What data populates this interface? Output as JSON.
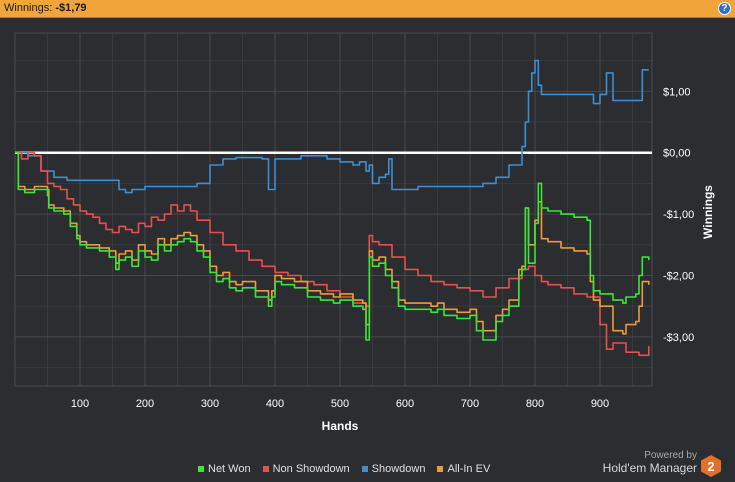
{
  "header": {
    "label": "Winnings:",
    "value": "-$1,79"
  },
  "help_glyph": "?",
  "branding": {
    "powered_by": "Powered by",
    "product": "Hold'em Manager",
    "logo_digit": "2"
  },
  "colors": {
    "background": "#2b2d30",
    "header_bar": "#f0a53a",
    "grid": "#4a4c50",
    "zero_line": "#ffffff",
    "net_won": "#39e639",
    "non_showdown": "#e8504d",
    "showdown": "#3d8fd6",
    "all_in_ev": "#f09a3a"
  },
  "chart_data": {
    "type": "line",
    "title": "",
    "xlabel": "Hands",
    "ylabel": "Winnings",
    "xlim": [
      0,
      980
    ],
    "ylim": [
      -3.8,
      1.95
    ],
    "xticks": [
      100,
      200,
      300,
      400,
      500,
      600,
      700,
      800,
      900
    ],
    "xtick_labels": [
      "100",
      "200",
      "300",
      "400",
      "500",
      "600",
      "700",
      "800",
      "900"
    ],
    "yticks": [
      1,
      0,
      -1,
      -2,
      -3
    ],
    "ytick_labels": [
      "$1,00",
      "$0,00",
      "-$1,00",
      "-$2,00",
      "-$3,00"
    ],
    "y_axis_side": "right",
    "grid": true,
    "legend_position": "bottom",
    "series": [
      {
        "name": "Net Won",
        "color": "#39e639",
        "x": [
          0,
          5,
          15,
          30,
          50,
          52,
          60,
          75,
          85,
          95,
          100,
          110,
          130,
          145,
          155,
          160,
          170,
          180,
          190,
          200,
          210,
          220,
          230,
          240,
          250,
          260,
          270,
          280,
          290,
          300,
          310,
          320,
          330,
          340,
          350,
          370,
          390,
          395,
          400,
          410,
          430,
          450,
          470,
          490,
          500,
          520,
          535,
          540,
          545,
          550,
          560,
          570,
          580,
          590,
          600,
          620,
          640,
          650,
          660,
          680,
          700,
          710,
          720,
          740,
          750,
          760,
          775,
          780,
          785,
          790,
          800,
          805,
          810,
          820,
          840,
          860,
          880,
          885,
          890,
          900,
          920,
          935,
          940,
          955,
          960,
          965,
          970,
          975
        ],
        "y": [
          0,
          -0.6,
          -0.65,
          -0.6,
          -0.7,
          -0.9,
          -0.95,
          -1.0,
          -1.2,
          -1.4,
          -1.5,
          -1.55,
          -1.6,
          -1.7,
          -1.9,
          -1.75,
          -1.7,
          -1.85,
          -1.6,
          -1.7,
          -1.75,
          -1.5,
          -1.6,
          -1.5,
          -1.45,
          -1.4,
          -1.45,
          -1.6,
          -1.7,
          -1.95,
          -2.1,
          -2.05,
          -2.2,
          -2.25,
          -2.2,
          -2.35,
          -2.5,
          -2.35,
          -2.1,
          -2.15,
          -2.2,
          -2.35,
          -2.4,
          -2.45,
          -2.4,
          -2.5,
          -2.55,
          -3.05,
          -1.7,
          -1.85,
          -1.8,
          -2.0,
          -2.2,
          -2.5,
          -2.55,
          -2.55,
          -2.6,
          -2.55,
          -2.65,
          -2.7,
          -2.65,
          -2.9,
          -3.05,
          -2.75,
          -2.65,
          -2.5,
          -2.0,
          -1.9,
          -0.9,
          -1.8,
          -1.15,
          -0.5,
          -0.9,
          -0.95,
          -1.0,
          -1.05,
          -1.1,
          -2.0,
          -2.25,
          -2.3,
          -2.4,
          -2.45,
          -2.35,
          -2.3,
          -2.0,
          -1.7,
          -1.7,
          -1.75
        ]
      },
      {
        "name": "Non Showdown",
        "color": "#e8504d",
        "x": [
          0,
          10,
          20,
          30,
          40,
          50,
          60,
          70,
          80,
          90,
          100,
          110,
          120,
          130,
          140,
          150,
          160,
          170,
          180,
          190,
          200,
          210,
          220,
          230,
          240,
          250,
          260,
          270,
          280,
          300,
          320,
          340,
          360,
          380,
          400,
          420,
          440,
          460,
          480,
          500,
          520,
          540,
          545,
          550,
          560,
          580,
          600,
          620,
          640,
          660,
          680,
          700,
          720,
          740,
          760,
          780,
          790,
          800,
          810,
          820,
          840,
          860,
          880,
          900,
          910,
          920,
          940,
          960,
          975
        ],
        "y": [
          0,
          -0.1,
          0,
          -0.05,
          -0.3,
          -0.5,
          -0.55,
          -0.6,
          -0.75,
          -0.85,
          -0.95,
          -1.0,
          -1.05,
          -1.15,
          -1.25,
          -1.3,
          -1.2,
          -1.25,
          -1.3,
          -1.15,
          -1.2,
          -1.05,
          -1.1,
          -1.0,
          -0.85,
          -0.95,
          -0.85,
          -0.95,
          -1.1,
          -1.3,
          -1.5,
          -1.6,
          -1.75,
          -1.85,
          -1.95,
          -2.0,
          -2.1,
          -2.15,
          -2.25,
          -2.35,
          -2.45,
          -2.5,
          -1.35,
          -1.45,
          -1.5,
          -1.7,
          -1.9,
          -2.0,
          -2.1,
          -2.15,
          -2.2,
          -2.25,
          -2.35,
          -2.2,
          -2.05,
          -1.9,
          -1.85,
          -2.0,
          -2.1,
          -2.15,
          -2.2,
          -2.3,
          -2.35,
          -2.8,
          -3.2,
          -3.1,
          -3.25,
          -3.3,
          -3.15
        ]
      },
      {
        "name": "Showdown",
        "color": "#3d8fd6",
        "x": [
          0,
          20,
          40,
          60,
          80,
          100,
          120,
          140,
          160,
          170,
          180,
          200,
          220,
          240,
          260,
          280,
          300,
          320,
          340,
          360,
          380,
          390,
          395,
          400,
          410,
          420,
          440,
          460,
          480,
          500,
          520,
          530,
          540,
          545,
          550,
          560,
          570,
          575,
          580,
          590,
          600,
          620,
          640,
          660,
          680,
          700,
          720,
          740,
          760,
          780,
          785,
          790,
          795,
          800,
          805,
          810,
          815,
          820,
          840,
          860,
          880,
          890,
          895,
          900,
          910,
          920,
          940,
          960,
          965,
          975
        ],
        "y": [
          0,
          -0.05,
          -0.3,
          -0.4,
          -0.45,
          -0.45,
          -0.45,
          -0.45,
          -0.6,
          -0.65,
          -0.6,
          -0.55,
          -0.55,
          -0.55,
          -0.55,
          -0.5,
          -0.2,
          -0.1,
          -0.08,
          -0.08,
          -0.1,
          -0.6,
          -0.6,
          -0.1,
          -0.1,
          -0.1,
          -0.05,
          -0.05,
          -0.1,
          -0.15,
          -0.2,
          -0.15,
          -0.3,
          -0.2,
          -0.5,
          -0.4,
          -0.35,
          -0.1,
          -0.6,
          -0.6,
          -0.6,
          -0.55,
          -0.55,
          -0.55,
          -0.55,
          -0.55,
          -0.5,
          -0.4,
          -0.2,
          0.1,
          0.5,
          1.0,
          1.3,
          1.5,
          1.1,
          0.95,
          0.95,
          0.95,
          0.95,
          0.95,
          0.95,
          0.8,
          0.8,
          0.95,
          1.3,
          0.85,
          0.85,
          0.85,
          1.35,
          1.35
        ]
      },
      {
        "name": "All-In EV",
        "color": "#f09a3a",
        "x": [
          0,
          5,
          15,
          30,
          50,
          52,
          60,
          75,
          85,
          95,
          100,
          110,
          130,
          145,
          155,
          160,
          170,
          180,
          190,
          200,
          210,
          220,
          230,
          240,
          250,
          260,
          270,
          280,
          290,
          300,
          310,
          320,
          330,
          340,
          350,
          370,
          390,
          395,
          400,
          410,
          430,
          450,
          470,
          490,
          500,
          520,
          535,
          540,
          545,
          550,
          560,
          570,
          580,
          590,
          600,
          620,
          640,
          650,
          660,
          680,
          700,
          710,
          720,
          740,
          750,
          760,
          775,
          780,
          785,
          790,
          800,
          805,
          810,
          820,
          840,
          860,
          880,
          885,
          890,
          900,
          920,
          935,
          940,
          955,
          960,
          965,
          970,
          975
        ],
        "y": [
          0,
          -0.55,
          -0.6,
          -0.55,
          -0.6,
          -0.85,
          -0.9,
          -0.95,
          -1.15,
          -1.35,
          -1.45,
          -1.5,
          -1.55,
          -1.6,
          -1.8,
          -1.65,
          -1.6,
          -1.75,
          -1.5,
          -1.6,
          -1.65,
          -1.4,
          -1.5,
          -1.4,
          -1.35,
          -1.3,
          -1.35,
          -1.5,
          -1.6,
          -1.85,
          -2.0,
          -1.95,
          -2.1,
          -2.15,
          -2.1,
          -2.25,
          -2.4,
          -2.25,
          -2.0,
          -2.05,
          -2.1,
          -2.25,
          -2.3,
          -2.35,
          -2.3,
          -2.4,
          -2.45,
          -2.8,
          -1.6,
          -1.75,
          -1.7,
          -1.9,
          -2.1,
          -2.4,
          -2.45,
          -2.45,
          -2.5,
          -2.45,
          -2.55,
          -2.6,
          -2.55,
          -2.75,
          -2.9,
          -2.65,
          -2.55,
          -2.4,
          -1.9,
          -1.85,
          -0.9,
          -1.5,
          -1.1,
          -0.8,
          -1.4,
          -1.45,
          -1.55,
          -1.6,
          -1.65,
          -2.1,
          -2.4,
          -2.5,
          -2.9,
          -2.95,
          -2.8,
          -2.75,
          -2.5,
          -2.1,
          -2.1,
          -2.15
        ]
      }
    ]
  }
}
